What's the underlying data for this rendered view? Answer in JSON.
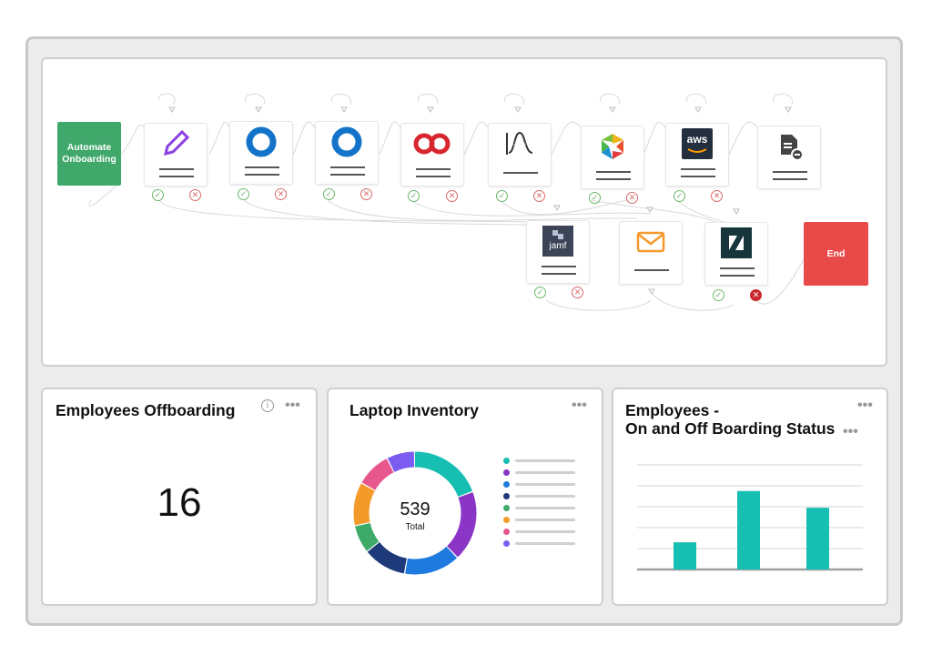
{
  "workflow": {
    "trigger_label": "Automate Onboarding",
    "end_label": "End",
    "aws_label": "aws",
    "jamf_label": "jamf",
    "success_symbol": "✓",
    "fail_symbol": "✕"
  },
  "offboarding": {
    "title": "Employees Offboarding",
    "count": "16",
    "info_symbol": "i"
  },
  "inventory": {
    "title": "Laptop Inventory",
    "total": "539",
    "total_label": "Total"
  },
  "status": {
    "title_line1": "Employees -",
    "title_line2": "On and Off Boarding Status"
  },
  "more_symbol": "•••",
  "colors": {
    "green_trigger": "#3fa86a",
    "end_red": "#e84a4a",
    "teal": "#17bfb3",
    "purple": "#8a35c6",
    "blue": "#1f7ae0",
    "navy": "#1e3a7a",
    "green": "#3daa6a",
    "orange": "#f39a2b",
    "pink": "#e8568e",
    "violet": "#7b5cf0"
  },
  "chart_data": [
    {
      "type": "pie",
      "title": "Laptop Inventory",
      "total": 539,
      "legend_labels_visible": false,
      "slices": [
        {
          "color": "#17bfb3",
          "value": 105
        },
        {
          "color": "#8a35c6",
          "value": 100
        },
        {
          "color": "#1f7ae0",
          "value": 80
        },
        {
          "color": "#1e3a7a",
          "value": 62
        },
        {
          "color": "#3daa6a",
          "value": 40
        },
        {
          "color": "#f39a2b",
          "value": 62
        },
        {
          "color": "#e8568e",
          "value": 50
        },
        {
          "color": "#7b5cf0",
          "value": 40
        }
      ]
    },
    {
      "type": "bar",
      "title": "Employees - On and Off Boarding Status",
      "categories": [
        "",
        "",
        ""
      ],
      "values": [
        26,
        75,
        59
      ],
      "ylim": [
        0,
        100
      ],
      "grid": true,
      "color": "#17bfb3"
    }
  ]
}
